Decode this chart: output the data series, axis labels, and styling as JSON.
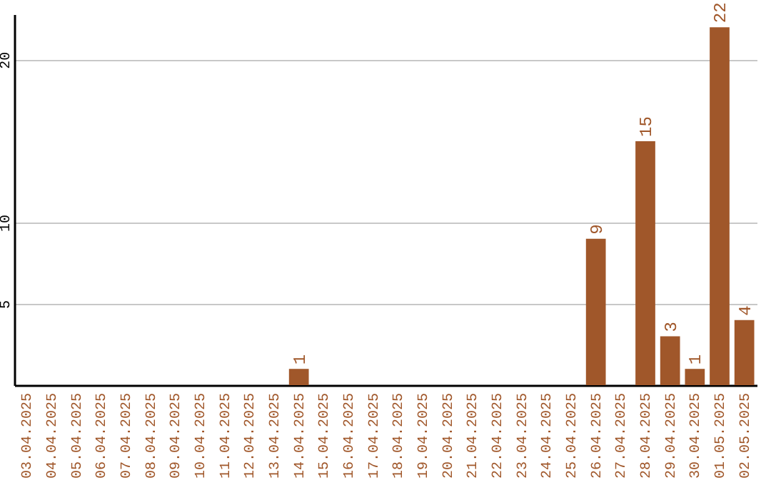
{
  "chart_data": {
    "type": "bar",
    "categories": [
      "03.04.2025",
      "04.04.2025",
      "05.04.2025",
      "06.04.2025",
      "07.04.2025",
      "08.04.2025",
      "09.04.2025",
      "10.04.2025",
      "11.04.2025",
      "12.04.2025",
      "13.04.2025",
      "14.04.2025",
      "15.04.2025",
      "16.04.2025",
      "17.04.2025",
      "18.04.2025",
      "19.04.2025",
      "20.04.2025",
      "21.04.2025",
      "22.04.2025",
      "23.04.2025",
      "24.04.2025",
      "25.04.2025",
      "26.04.2025",
      "27.04.2025",
      "28.04.2025",
      "29.04.2025",
      "30.04.2025",
      "01.05.2025",
      "02.05.2025"
    ],
    "values": [
      0,
      0,
      0,
      0,
      0,
      0,
      0,
      0,
      0,
      0,
      0,
      1,
      0,
      0,
      0,
      0,
      0,
      0,
      0,
      0,
      0,
      0,
      0,
      9,
      0,
      15,
      3,
      1,
      22,
      4
    ],
    "value_labels": [
      null,
      null,
      null,
      null,
      null,
      null,
      null,
      null,
      null,
      null,
      null,
      "1",
      null,
      null,
      null,
      null,
      null,
      null,
      null,
      null,
      null,
      null,
      null,
      "9",
      null,
      "15",
      "3",
      "1",
      "22",
      "4"
    ],
    "color": "#a0572a",
    "ylim": [
      0,
      22.8
    ],
    "yticks": [
      5,
      10,
      20
    ],
    "grid": "y"
  }
}
